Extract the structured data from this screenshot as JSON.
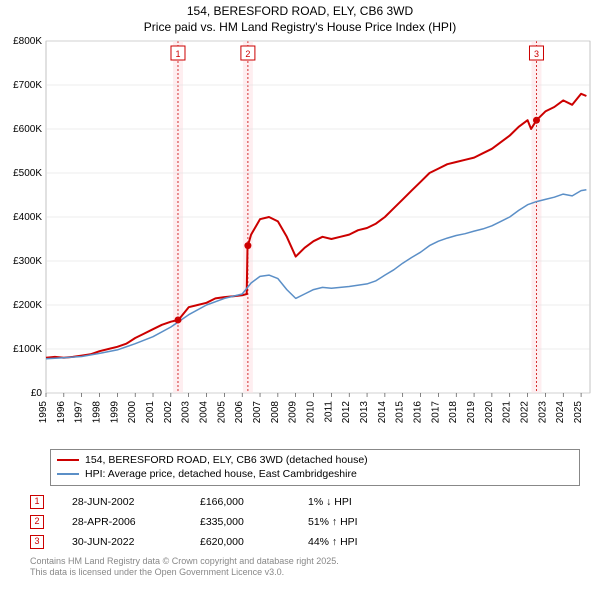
{
  "title_line1": "154, BERESFORD ROAD, ELY, CB6 3WD",
  "title_line2": "Price paid vs. HM Land Registry's House Price Index (HPI)",
  "chart": {
    "type": "line",
    "background": "#ffffff",
    "grid_color": "#dddddd",
    "plot_border_color": "#888888",
    "xlim": [
      1995,
      2025.5
    ],
    "ylim": [
      0,
      800000
    ],
    "ytick_step": 100000,
    "yticks": [
      "£0",
      "£100K",
      "£200K",
      "£300K",
      "£400K",
      "£500K",
      "£600K",
      "£700K",
      "£800K"
    ],
    "xticks": [
      1995,
      1996,
      1997,
      1998,
      1999,
      2000,
      2001,
      2002,
      2003,
      2004,
      2005,
      2006,
      2007,
      2008,
      2009,
      2010,
      2011,
      2012,
      2013,
      2014,
      2015,
      2016,
      2017,
      2018,
      2019,
      2020,
      2021,
      2022,
      2023,
      2024,
      2025
    ],
    "series": [
      {
        "name": "154, BERESFORD ROAD, ELY, CB6 3WD (detached house)",
        "color": "#cc0000",
        "width": 2,
        "marker_color": "#cc0000",
        "data": [
          [
            1995,
            80000
          ],
          [
            1995.5,
            82000
          ],
          [
            1996,
            80000
          ],
          [
            1996.5,
            82000
          ],
          [
            1997,
            85000
          ],
          [
            1997.5,
            88000
          ],
          [
            1998,
            95000
          ],
          [
            1998.5,
            100000
          ],
          [
            1999,
            105000
          ],
          [
            1999.5,
            112000
          ],
          [
            2000,
            125000
          ],
          [
            2000.5,
            135000
          ],
          [
            2001,
            145000
          ],
          [
            2001.5,
            155000
          ],
          [
            2002,
            162000
          ],
          [
            2002.4,
            166000
          ],
          [
            2002.5,
            170000
          ],
          [
            2003,
            195000
          ],
          [
            2003.5,
            200000
          ],
          [
            2004,
            205000
          ],
          [
            2004.5,
            215000
          ],
          [
            2005,
            218000
          ],
          [
            2005.5,
            220000
          ],
          [
            2006,
            222000
          ],
          [
            2006.25,
            225000
          ],
          [
            2006.3,
            330000
          ],
          [
            2006.32,
            335000
          ],
          [
            2006.5,
            360000
          ],
          [
            2007,
            395000
          ],
          [
            2007.5,
            400000
          ],
          [
            2008,
            390000
          ],
          [
            2008.5,
            355000
          ],
          [
            2009,
            310000
          ],
          [
            2009.5,
            330000
          ],
          [
            2010,
            345000
          ],
          [
            2010.5,
            355000
          ],
          [
            2011,
            350000
          ],
          [
            2011.5,
            355000
          ],
          [
            2012,
            360000
          ],
          [
            2012.5,
            370000
          ],
          [
            2013,
            375000
          ],
          [
            2013.5,
            385000
          ],
          [
            2014,
            400000
          ],
          [
            2014.5,
            420000
          ],
          [
            2015,
            440000
          ],
          [
            2015.5,
            460000
          ],
          [
            2016,
            480000
          ],
          [
            2016.5,
            500000
          ],
          [
            2017,
            510000
          ],
          [
            2017.5,
            520000
          ],
          [
            2018,
            525000
          ],
          [
            2018.5,
            530000
          ],
          [
            2019,
            535000
          ],
          [
            2019.5,
            545000
          ],
          [
            2020,
            555000
          ],
          [
            2020.5,
            570000
          ],
          [
            2021,
            585000
          ],
          [
            2021.5,
            605000
          ],
          [
            2022,
            620000
          ],
          [
            2022.2,
            600000
          ],
          [
            2022.5,
            620000
          ],
          [
            2023,
            640000
          ],
          [
            2023.5,
            650000
          ],
          [
            2024,
            665000
          ],
          [
            2024.5,
            655000
          ],
          [
            2025,
            680000
          ],
          [
            2025.3,
            675000
          ]
        ]
      },
      {
        "name": "HPI: Average price, detached house, East Cambridgeshire",
        "color": "#5b8fc7",
        "width": 1.5,
        "data": [
          [
            1995,
            78000
          ],
          [
            1996,
            80000
          ],
          [
            1997,
            83000
          ],
          [
            1998,
            90000
          ],
          [
            1999,
            98000
          ],
          [
            2000,
            112000
          ],
          [
            2001,
            128000
          ],
          [
            2002,
            150000
          ],
          [
            2003,
            178000
          ],
          [
            2004,
            200000
          ],
          [
            2005,
            215000
          ],
          [
            2006,
            225000
          ],
          [
            2006.5,
            250000
          ],
          [
            2007,
            265000
          ],
          [
            2007.5,
            268000
          ],
          [
            2008,
            260000
          ],
          [
            2008.5,
            235000
          ],
          [
            2009,
            215000
          ],
          [
            2009.5,
            225000
          ],
          [
            2010,
            235000
          ],
          [
            2010.5,
            240000
          ],
          [
            2011,
            238000
          ],
          [
            2012,
            242000
          ],
          [
            2013,
            248000
          ],
          [
            2013.5,
            255000
          ],
          [
            2014,
            268000
          ],
          [
            2014.5,
            280000
          ],
          [
            2015,
            295000
          ],
          [
            2015.5,
            308000
          ],
          [
            2016,
            320000
          ],
          [
            2016.5,
            335000
          ],
          [
            2017,
            345000
          ],
          [
            2017.5,
            352000
          ],
          [
            2018,
            358000
          ],
          [
            2018.5,
            362000
          ],
          [
            2019,
            368000
          ],
          [
            2019.5,
            373000
          ],
          [
            2020,
            380000
          ],
          [
            2020.5,
            390000
          ],
          [
            2021,
            400000
          ],
          [
            2021.5,
            415000
          ],
          [
            2022,
            428000
          ],
          [
            2022.5,
            435000
          ],
          [
            2023,
            440000
          ],
          [
            2023.5,
            445000
          ],
          [
            2024,
            452000
          ],
          [
            2024.5,
            448000
          ],
          [
            2025,
            460000
          ],
          [
            2025.3,
            462000
          ]
        ]
      }
    ],
    "sale_markers": [
      {
        "n": 1,
        "x": 2002.4,
        "y": 166000,
        "band_color": "#fde7e9",
        "line_color": "#cc0000"
      },
      {
        "n": 2,
        "x": 2006.32,
        "y": 335000,
        "band_color": "#fde7e9",
        "line_color": "#cc0000"
      },
      {
        "n": 3,
        "x": 2022.5,
        "y": 620000,
        "band_color": "#fde7e9",
        "line_color": "#cc0000"
      }
    ]
  },
  "legend": {
    "items": [
      {
        "color": "#cc0000",
        "label": "154, BERESFORD ROAD, ELY, CB6 3WD (detached house)"
      },
      {
        "color": "#5b8fc7",
        "label": "HPI: Average price, detached house, East Cambridgeshire"
      }
    ]
  },
  "events": [
    {
      "n": 1,
      "color": "#cc0000",
      "date": "28-JUN-2002",
      "price": "£166,000",
      "delta": "1% ↓ HPI"
    },
    {
      "n": 2,
      "color": "#cc0000",
      "date": "28-APR-2006",
      "price": "£335,000",
      "delta": "51% ↑ HPI"
    },
    {
      "n": 3,
      "color": "#cc0000",
      "date": "30-JUN-2022",
      "price": "£620,000",
      "delta": "44% ↑ HPI"
    }
  ],
  "footer_line1": "Contains HM Land Registry data © Crown copyright and database right 2025.",
  "footer_line2": "This data is licensed under the Open Government Licence v3.0."
}
